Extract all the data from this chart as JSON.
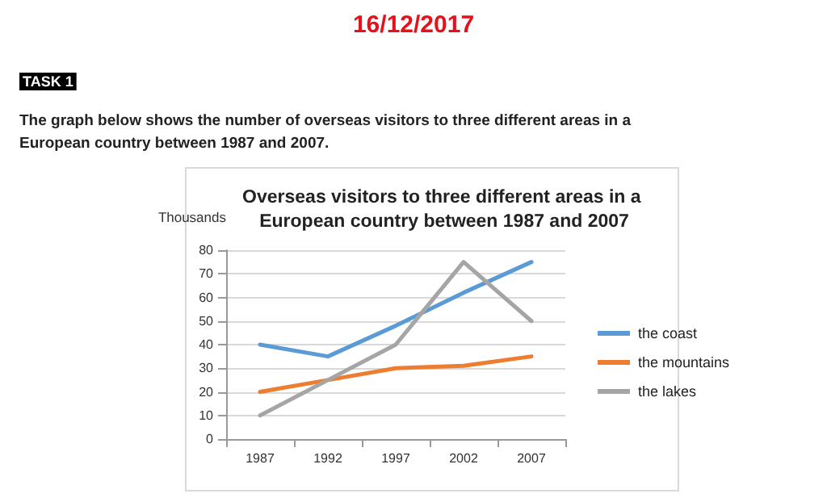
{
  "chart_data": {
    "type": "line",
    "title": "Overseas visitors to three different areas in a European country between 1987 and 2007",
    "ylabel": "Thousands",
    "annotations": [
      "16/12/2017",
      "TASK 1",
      "The graph below shows the number of overseas visitors to three different areas in a European country between 1987 and 2007."
    ],
    "categories": [
      "1987",
      "1992",
      "1997",
      "2002",
      "2007"
    ],
    "series": [
      {
        "name": "the coast",
        "color": "#5b9bd5",
        "values": [
          40,
          35,
          48,
          62,
          75
        ]
      },
      {
        "name": "the mountains",
        "color": "#ed7d31",
        "values": [
          20,
          25,
          30,
          31,
          35
        ]
      },
      {
        "name": "the lakes",
        "color": "#a5a5a5",
        "values": [
          10,
          25,
          40,
          75,
          50
        ]
      }
    ],
    "ylim": [
      0,
      80
    ],
    "yticks": [
      0,
      10,
      20,
      30,
      40,
      50,
      60,
      70,
      80
    ],
    "grid": "y",
    "legend": "right",
    "marker": "none",
    "line_style": "solid"
  }
}
